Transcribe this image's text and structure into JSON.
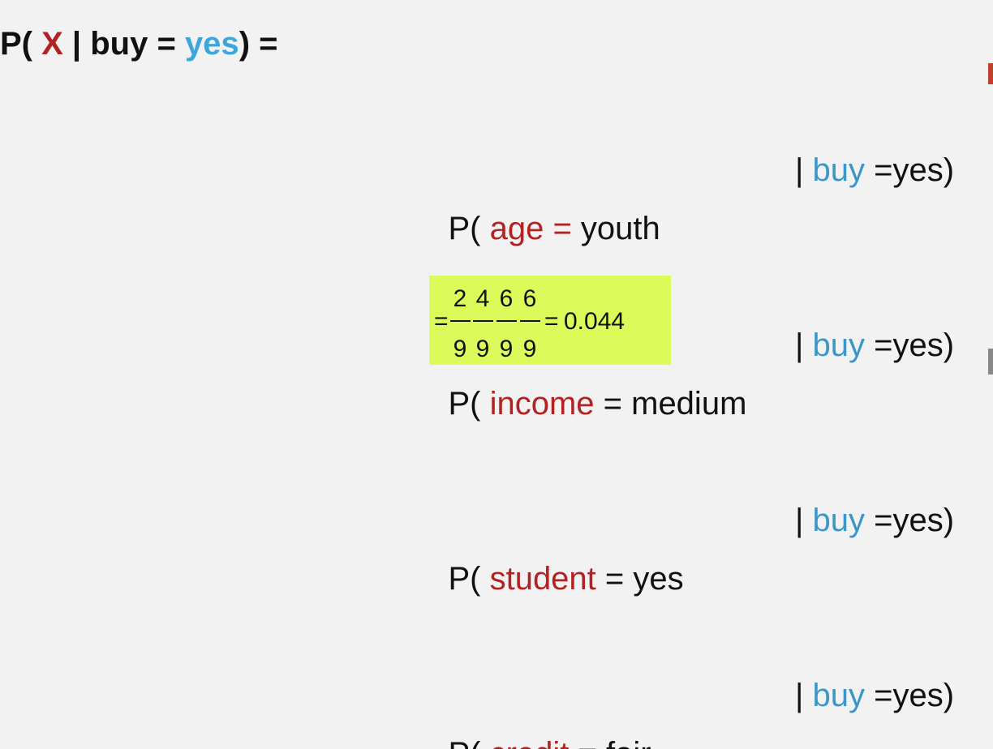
{
  "lhs": {
    "p_open": "P( ",
    "x": "X",
    "mid": " | buy = ",
    "yes": "yes",
    "close": ") ="
  },
  "rows": [
    {
      "p": "P( ",
      "attr": "age",
      "eq_red": " =",
      "val": " youth",
      "bar": "| ",
      "buy": "buy",
      "given": " =yes)"
    },
    {
      "p": "P( ",
      "attr": "income",
      "eq_red": "",
      "val": " = medium",
      "bar": "| ",
      "buy": "buy",
      "given": " =yes)"
    },
    {
      "p": "P( ",
      "attr": "student",
      "eq_red": "",
      "val": " = yes",
      "bar": "| ",
      "buy": "buy",
      "given": " =yes)"
    },
    {
      "p": "P( ",
      "attr": "credit",
      "eq_red": "",
      "val": " = fair",
      "bar": "| ",
      "buy": "buy",
      "given": " =yes)"
    }
  ],
  "equation": {
    "lead_eq": "=",
    "numerators": [
      "2",
      "4",
      "6",
      "6"
    ],
    "denominators": [
      "9",
      "9",
      "9",
      "9"
    ],
    "trail_eq": "=",
    "result": "0.044"
  },
  "colors": {
    "background": "#f2f2f2",
    "red": "#b22222",
    "blue": "#3ea6dc",
    "highlight": "#dcfb5a"
  }
}
